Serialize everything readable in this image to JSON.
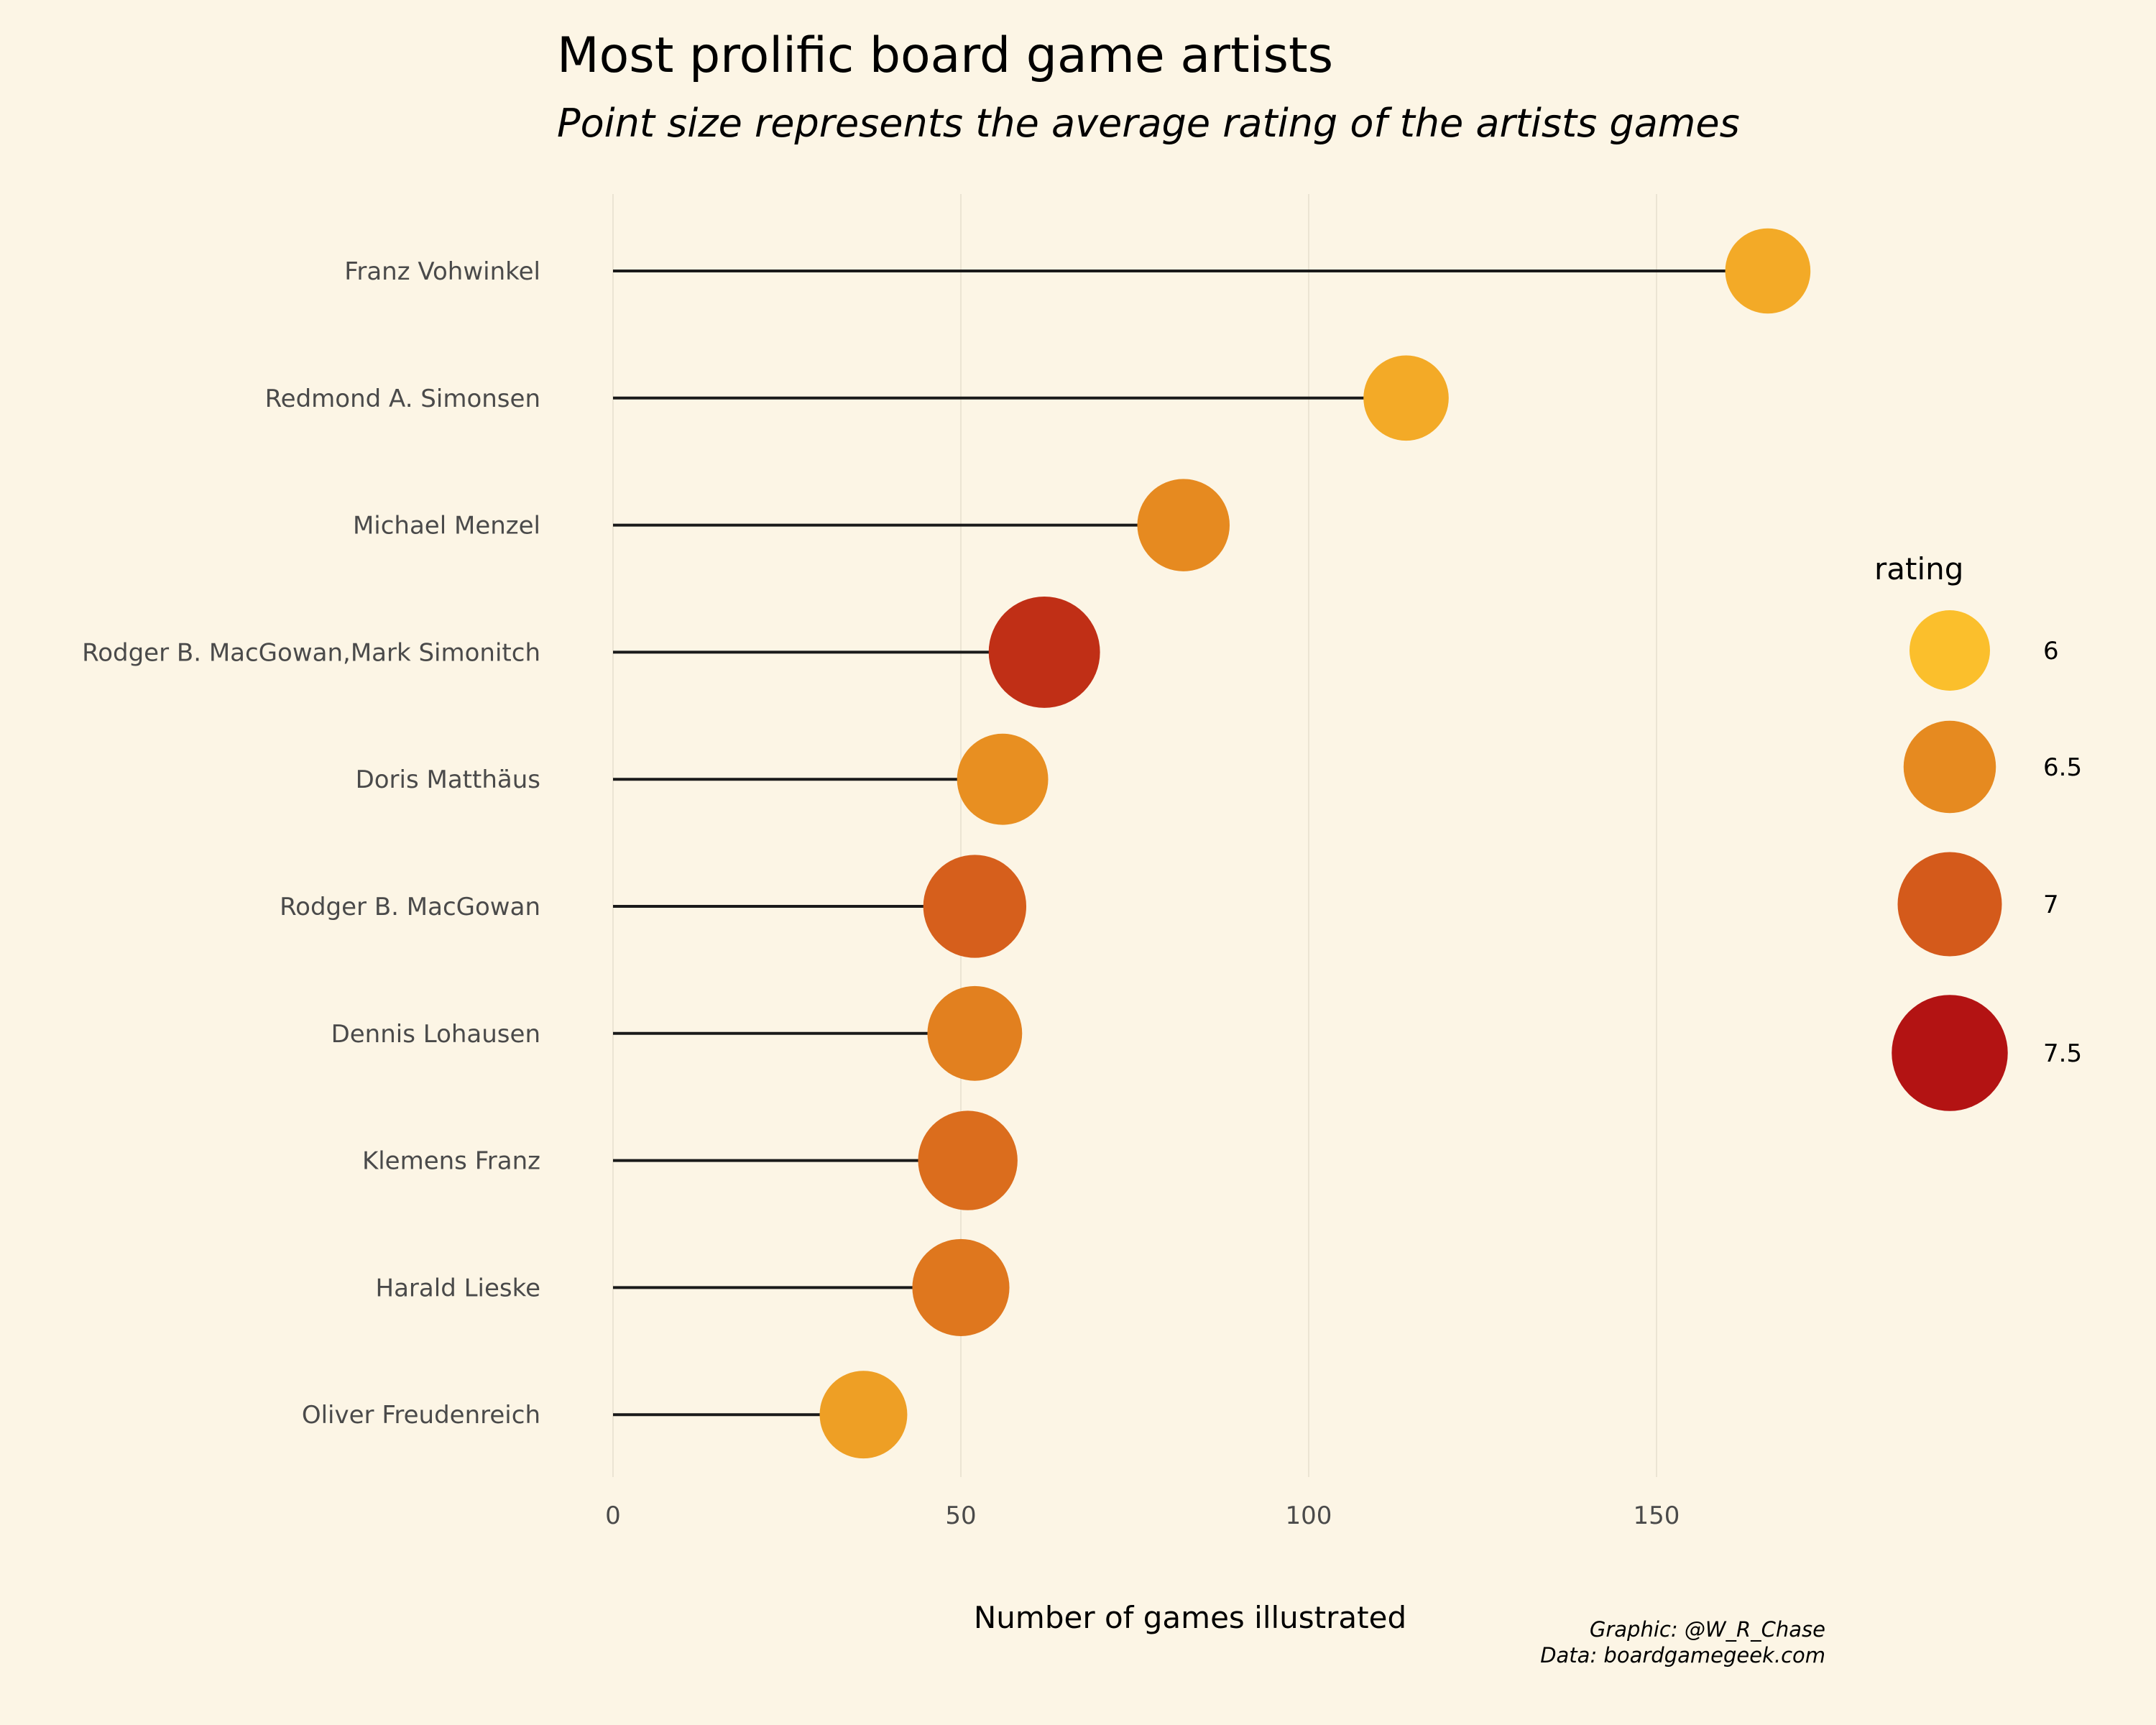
{
  "chart_data": {
    "type": "lollipop",
    "title": "Most prolific board game artists",
    "subtitle": "Point size represents the average rating of the artists games",
    "xlabel": "Number of games illustrated",
    "ylabel": "",
    "xlim": [
      0,
      192
    ],
    "xticks": [
      0,
      50,
      100,
      150
    ],
    "grid": "vertical",
    "points": [
      {
        "artist": "Franz Vohwinkel",
        "games": 166,
        "rating": 6.2
      },
      {
        "artist": "Redmond A. Simonsen",
        "games": 114,
        "rating": 6.2
      },
      {
        "artist": "Michael Menzel",
        "games": 82,
        "rating": 6.5
      },
      {
        "artist": "Rodger B. MacGowan,Mark Simonitch",
        "games": 62,
        "rating": 7.3
      },
      {
        "artist": "Doris Matthäus",
        "games": 56,
        "rating": 6.45
      },
      {
        "artist": "Rodger B. MacGowan",
        "games": 52,
        "rating": 6.95
      },
      {
        "artist": "Dennis Lohausen",
        "games": 52,
        "rating": 6.6
      },
      {
        "artist": "Klemens Franz",
        "games": 51,
        "rating": 6.8
      },
      {
        "artist": "Harald Lieske",
        "games": 50,
        "rating": 6.7
      },
      {
        "artist": "Oliver Freudenreich",
        "games": 36,
        "rating": 6.3
      }
    ],
    "legend": {
      "title": "rating",
      "position": "right",
      "entries": [
        {
          "label": "6",
          "value": 6.0,
          "color": "#fbbf2c"
        },
        {
          "label": "6.5",
          "value": 6.5,
          "color": "#e68a20"
        },
        {
          "label": "7",
          "value": 7.0,
          "color": "#d45a1b"
        },
        {
          "label": "7.5",
          "value": 7.5,
          "color": "#b31313"
        }
      ]
    },
    "colors": {
      "background": "#fcf5e5",
      "segment": "#1a1a1a",
      "gridline": "#ebe4d3"
    }
  },
  "caption": {
    "line1": "Graphic: @W_R_Chase",
    "line2": "Data: boardgamegeek.com"
  }
}
